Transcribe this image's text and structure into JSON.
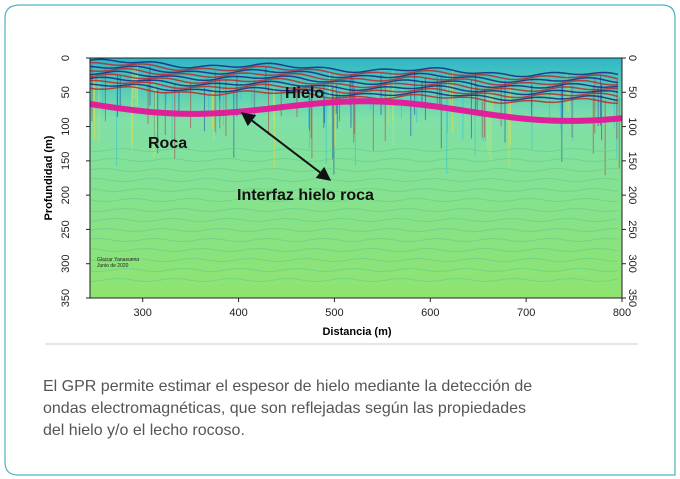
{
  "figure": {
    "y_label": "Profundidad (m)",
    "x_label": "Distancia (m)",
    "xlim": [
      245,
      800
    ],
    "ylim": [
      0,
      350
    ],
    "xticks": [
      300,
      400,
      500,
      600,
      700,
      800
    ],
    "yticks": [
      0,
      50,
      100,
      150,
      200,
      250,
      300,
      350
    ],
    "annotations": {
      "ice": "Hielo",
      "rock": "Roca",
      "interface": "Interfaz hielo roca"
    },
    "stamp": [
      "Glaciar Yanasuena",
      "Junio de 2020"
    ]
  },
  "caption": [
    "El GPR permite estimar el espesor de hielo mediante la detección de",
    "ondas electromagnéticas, que son reflejadas según las propiedades",
    "del hielo y/o el lecho rocoso."
  ]
}
